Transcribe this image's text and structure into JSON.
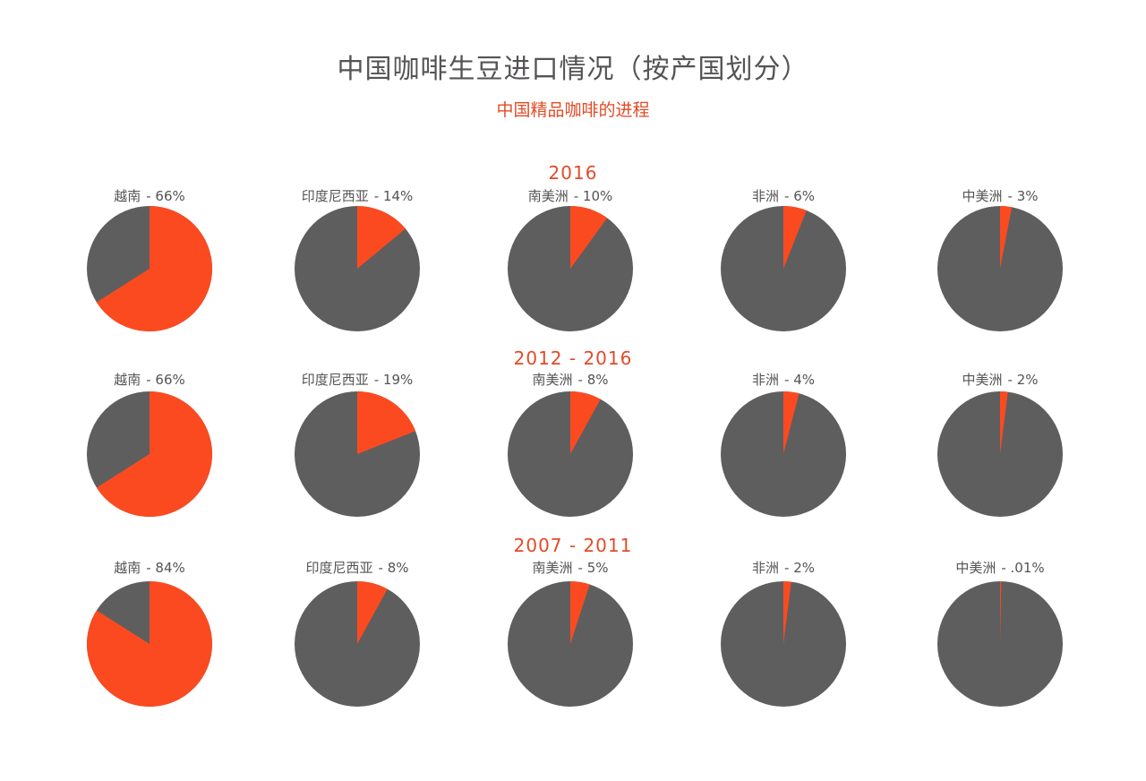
{
  "header": {
    "title": "中国咖啡生豆进口情况（按产国划分）",
    "subtitle": "中国精品咖啡的进程"
  },
  "colors": {
    "highlight": "#fc4a20",
    "rest": "#5f5e5f",
    "group_title": "#e24b27",
    "label": "#555355",
    "main_title": "#555355"
  },
  "chart_data": [
    {
      "type": "pie",
      "title": "2016",
      "charts": [
        {
          "label": "越南",
          "value_label": "- 66%",
          "value": 66
        },
        {
          "label": "印度尼西亚",
          "value_label": "- 14%",
          "value": 14
        },
        {
          "label": "南美洲",
          "value_label": "- 10%",
          "value": 10
        },
        {
          "label": "非洲",
          "value_label": "- 6%",
          "value": 6
        },
        {
          "label": "中美洲",
          "value_label": "- 3%",
          "value": 3
        }
      ]
    },
    {
      "type": "pie",
      "title": "2012 - 2016",
      "charts": [
        {
          "label": "越南",
          "value_label": "- 66%",
          "value": 66
        },
        {
          "label": "印度尼西亚",
          "value_label": "- 19%",
          "value": 19
        },
        {
          "label": "南美洲",
          "value_label": "- 8%",
          "value": 8
        },
        {
          "label": "非洲",
          "value_label": "- 4%",
          "value": 4
        },
        {
          "label": "中美洲",
          "value_label": "- 2%",
          "value": 2
        }
      ]
    },
    {
      "type": "pie",
      "title": "2007 - 2011",
      "charts": [
        {
          "label": "越南",
          "value_label": "- 84%",
          "value": 84
        },
        {
          "label": "印度尼西亚",
          "value_label": "- 8%",
          "value": 8
        },
        {
          "label": "南美洲",
          "value_label": "- 5%",
          "value": 5
        },
        {
          "label": "非洲",
          "value_label": "- 2%",
          "value": 2
        },
        {
          "label": "中美洲",
          "value_label": "- .01%",
          "value": 0.01
        }
      ]
    }
  ]
}
